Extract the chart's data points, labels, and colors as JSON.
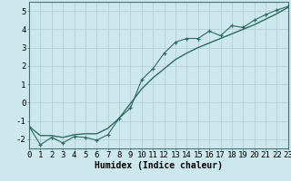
{
  "xlabel": "Humidex (Indice chaleur)",
  "background_color": "#cce8ec",
  "grid_color": "#b8d4d8",
  "line_color": "#2e6b60",
  "x_data": [
    0,
    1,
    2,
    3,
    4,
    5,
    6,
    7,
    8,
    9,
    10,
    11,
    12,
    13,
    14,
    15,
    16,
    17,
    18,
    19,
    20,
    21,
    22,
    23
  ],
  "y_data_zigzag": [
    -1.3,
    -2.3,
    -1.9,
    -2.2,
    -1.85,
    -1.9,
    -2.05,
    -1.75,
    -0.85,
    -0.3,
    1.25,
    1.85,
    2.7,
    3.3,
    3.5,
    3.5,
    3.9,
    3.65,
    4.2,
    4.1,
    4.5,
    4.8,
    5.05,
    5.25
  ],
  "y_data_smooth": [
    -1.3,
    -1.8,
    -1.8,
    -1.9,
    -1.75,
    -1.7,
    -1.7,
    -1.4,
    -0.85,
    -0.05,
    0.75,
    1.35,
    1.85,
    2.35,
    2.7,
    3.0,
    3.25,
    3.5,
    3.75,
    4.0,
    4.25,
    4.55,
    4.85,
    5.2
  ],
  "xlim": [
    0,
    23
  ],
  "ylim": [
    -2.5,
    5.5
  ],
  "yticks": [
    -2,
    -1,
    0,
    1,
    2,
    3,
    4,
    5
  ],
  "xticks": [
    0,
    1,
    2,
    3,
    4,
    5,
    6,
    7,
    8,
    9,
    10,
    11,
    12,
    13,
    14,
    15,
    16,
    17,
    18,
    19,
    20,
    21,
    22,
    23
  ],
  "font_family": "monospace",
  "xlabel_fontsize": 7,
  "tick_fontsize": 6.5
}
